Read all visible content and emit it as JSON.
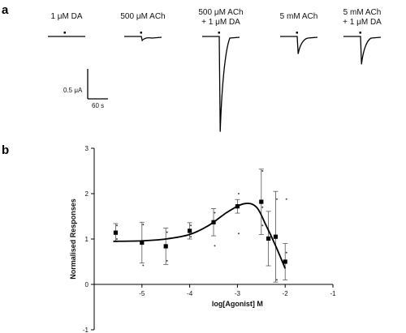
{
  "panels": {
    "a": "a",
    "b": "b"
  },
  "traces": [
    {
      "label_lines": [
        "1 μM DA"
      ],
      "response": 0
    },
    {
      "label_lines": [
        "500 μM ACh"
      ],
      "response": 0.05
    },
    {
      "label_lines": [
        "500 μM ACh",
        "+ 1 μM DA"
      ],
      "response": 1.2
    },
    {
      "label_lines": [
        "5 mM ACh"
      ],
      "response": 0.22
    },
    {
      "label_lines": [
        "5 mM ACh",
        "+ 1 μM DA"
      ],
      "response": 0.35
    }
  ],
  "scale_bar": {
    "current_label": "0.5 μA",
    "time_label": "60 s"
  },
  "chart_data": {
    "type": "scatter",
    "title": "",
    "xlabel": "log[Agonist] M",
    "ylabel": "Normalised Responses",
    "xlim": [
      -6,
      -1
    ],
    "ylim": [
      -1,
      3
    ],
    "xticks": [
      "-5",
      "-4",
      "-3",
      "-2",
      "-1"
    ],
    "yticks": [
      "-1",
      "0",
      "1",
      "2",
      "3"
    ],
    "grid": false,
    "points": [
      {
        "x": -5.55,
        "y": 1.14,
        "err": 0.2
      },
      {
        "x": -5.0,
        "y": 0.92,
        "err": 0.45
      },
      {
        "x": -4.5,
        "y": 0.84,
        "err": 0.4
      },
      {
        "x": -4.0,
        "y": 1.18,
        "err": 0.18
      },
      {
        "x": -3.5,
        "y": 1.37,
        "err": 0.3
      },
      {
        "x": -3.0,
        "y": 1.72,
        "err": 0.15
      },
      {
        "x": -2.5,
        "y": 1.82,
        "err": 0.72
      },
      {
        "x": -2.35,
        "y": 1.01,
        "err": 0.6
      },
      {
        "x": -2.2,
        "y": 1.05,
        "err": 1.0
      },
      {
        "x": -2.0,
        "y": 0.5,
        "err": 0.4
      }
    ],
    "scatter_points": [
      {
        "x": -5.55,
        "y": 1.3
      },
      {
        "x": -5.55,
        "y": 1.0
      },
      {
        "x": -5.0,
        "y": 1.32
      },
      {
        "x": -5.0,
        "y": 0.42
      },
      {
        "x": -4.5,
        "y": 1.15
      },
      {
        "x": -4.5,
        "y": 0.52
      },
      {
        "x": -4.0,
        "y": 1.3
      },
      {
        "x": -4.0,
        "y": 1.05
      },
      {
        "x": -3.5,
        "y": 1.58
      },
      {
        "x": -3.5,
        "y": 0.85
      },
      {
        "x": -3.0,
        "y": 2.0
      },
      {
        "x": -3.0,
        "y": 1.12
      },
      {
        "x": -2.5,
        "y": 2.5
      },
      {
        "x": -2.5,
        "y": 1.3
      },
      {
        "x": -2.5,
        "y": 1.7
      },
      {
        "x": -2.2,
        "y": 1.88
      },
      {
        "x": -2.2,
        "y": 0.1
      },
      {
        "x": -2.0,
        "y": 1.88
      },
      {
        "x": -2.0,
        "y": 0.7
      }
    ],
    "fit_curve": [
      {
        "x": -5.6,
        "y": 0.95
      },
      {
        "x": -5.0,
        "y": 0.96
      },
      {
        "x": -4.5,
        "y": 1.0
      },
      {
        "x": -4.0,
        "y": 1.1
      },
      {
        "x": -3.6,
        "y": 1.3
      },
      {
        "x": -3.2,
        "y": 1.6
      },
      {
        "x": -2.85,
        "y": 1.78
      },
      {
        "x": -2.6,
        "y": 1.7
      },
      {
        "x": -2.4,
        "y": 1.3
      },
      {
        "x": -2.2,
        "y": 0.85
      },
      {
        "x": -2.0,
        "y": 0.35
      }
    ]
  }
}
